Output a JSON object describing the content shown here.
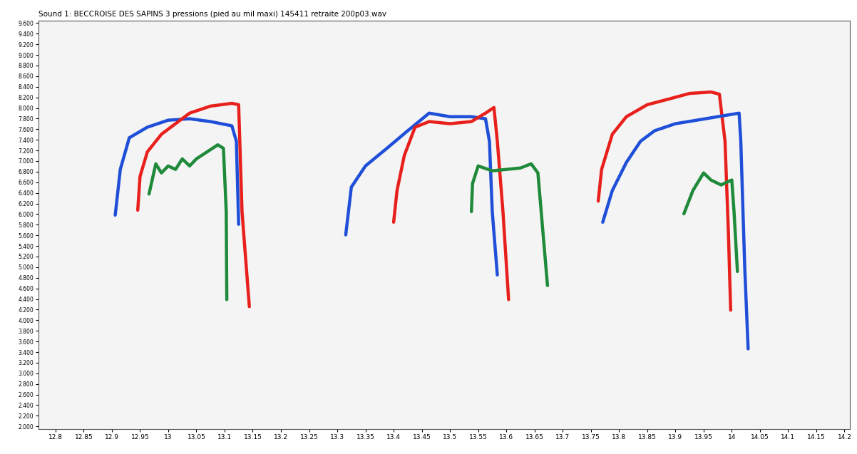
{
  "chart_data": {
    "type": "line",
    "title": "Sound 1: BECCROISE DES SAPINS 3 pressions (pied au mil maxi) 145411 retraite 200p03.wav",
    "xlim": [
      12.77,
      14.21
    ],
    "ylim": [
      1950,
      9650
    ],
    "xticks": [
      12.8,
      12.85,
      12.9,
      12.95,
      13,
      13.05,
      13.1,
      13.15,
      13.2,
      13.25,
      13.3,
      13.35,
      13.4,
      13.45,
      13.5,
      13.55,
      13.6,
      13.65,
      13.7,
      13.75,
      13.8,
      13.85,
      13.9,
      13.95,
      14,
      14.05,
      14.1,
      14.15,
      14.2
    ],
    "yticks": [
      {
        "value": 2000,
        "label": "2.000"
      },
      {
        "value": 2200,
        "label": "2.200"
      },
      {
        "value": 2400,
        "label": "2.400"
      },
      {
        "value": 2600,
        "label": "2.600"
      },
      {
        "value": 2800,
        "label": "2.800"
      },
      {
        "value": 3000,
        "label": "3.000"
      },
      {
        "value": 3200,
        "label": "3.200"
      },
      {
        "value": 3400,
        "label": "3.400"
      },
      {
        "value": 3600,
        "label": "3.600"
      },
      {
        "value": 3800,
        "label": "3.800"
      },
      {
        "value": 4000,
        "label": "4.000"
      },
      {
        "value": 4200,
        "label": "4.200"
      },
      {
        "value": 4400,
        "label": "4.400"
      },
      {
        "value": 4600,
        "label": "4.600"
      },
      {
        "value": 4800,
        "label": "4.800"
      },
      {
        "value": 5000,
        "label": "5.000"
      },
      {
        "value": 5200,
        "label": "5.200"
      },
      {
        "value": 5400,
        "label": "5.400"
      },
      {
        "value": 5600,
        "label": "5.600"
      },
      {
        "value": 5800,
        "label": "5.800"
      },
      {
        "value": 6000,
        "label": "6.000"
      },
      {
        "value": 6200,
        "label": "6.200"
      },
      {
        "value": 6400,
        "label": "6.400"
      },
      {
        "value": 6600,
        "label": "6.600"
      },
      {
        "value": 6800,
        "label": "6.800"
      },
      {
        "value": 7000,
        "label": "7.000"
      },
      {
        "value": 7200,
        "label": "7.200"
      },
      {
        "value": 7400,
        "label": "7.400"
      },
      {
        "value": 7600,
        "label": "7.600"
      },
      {
        "value": 7800,
        "label": "7.800"
      },
      {
        "value": 8000,
        "label": "8.000"
      },
      {
        "value": 8200,
        "label": "8.200"
      },
      {
        "value": 8400,
        "label": "8.400"
      },
      {
        "value": 8600,
        "label": "8.600"
      },
      {
        "value": 8800,
        "label": "8.800"
      },
      {
        "value": 9000,
        "label": "9.000"
      },
      {
        "value": 9200,
        "label": "9.200"
      },
      {
        "value": 9400,
        "label": "9.400"
      },
      {
        "value": 9600,
        "label": "9.600"
      }
    ],
    "grid": false,
    "series": [
      {
        "color": "#1f4fd8",
        "x": [
          12.906,
          12.915,
          12.931,
          12.963,
          13.0,
          13.038,
          13.075,
          13.113,
          13.121,
          13.125
        ],
        "values": [
          5980,
          6842,
          7439,
          7638,
          7770,
          7797,
          7744,
          7664,
          7372,
          5808
        ]
      },
      {
        "color": "#e8201c",
        "x": [
          12.946,
          12.95,
          12.963,
          12.988,
          13.013,
          13.038,
          13.075,
          13.113,
          13.125,
          13.131,
          13.144
        ],
        "values": [
          6073,
          6709,
          7173,
          7505,
          7704,
          7903,
          8035,
          8088,
          8062,
          6046,
          4256
        ]
      },
      {
        "color": "#1e8a3a",
        "x": [
          12.966,
          12.978,
          12.988,
          13.0,
          13.013,
          13.025,
          13.038,
          13.05,
          13.069,
          13.088,
          13.098,
          13.103,
          13.104
        ],
        "values": [
          6378,
          6948,
          6776,
          6908,
          6842,
          7041,
          6908,
          7041,
          7173,
          7306,
          7240,
          6046,
          4389
        ]
      },
      {
        "color": "#1f4fd8",
        "x": [
          13.315,
          13.325,
          13.35,
          13.388,
          13.425,
          13.463,
          13.5,
          13.538,
          13.563,
          13.57,
          13.575,
          13.584
        ],
        "values": [
          5609,
          6510,
          6908,
          7240,
          7571,
          7903,
          7836,
          7836,
          7797,
          7372,
          6046,
          4853
        ]
      },
      {
        "color": "#e8201c",
        "x": [
          13.4,
          13.406,
          13.419,
          13.438,
          13.463,
          13.5,
          13.538,
          13.563,
          13.578,
          13.584,
          13.594,
          13.604
        ],
        "values": [
          5847,
          6444,
          7107,
          7638,
          7744,
          7704,
          7744,
          7903,
          8009,
          7372,
          6046,
          4389
        ]
      },
      {
        "color": "#1e8a3a",
        "x": [
          13.538,
          13.54,
          13.55,
          13.575,
          13.6,
          13.625,
          13.644,
          13.656,
          13.665,
          13.673
        ],
        "values": [
          6046,
          6577,
          6908,
          6816,
          6842,
          6869,
          6948,
          6776,
          5649,
          4654
        ]
      },
      {
        "color": "#e8201c",
        "x": [
          13.763,
          13.769,
          13.788,
          13.813,
          13.85,
          13.888,
          13.925,
          13.963,
          13.978,
          13.988,
          13.994,
          13.998
        ],
        "values": [
          6245,
          6842,
          7505,
          7836,
          8062,
          8168,
          8274,
          8301,
          8261,
          7372,
          5649,
          4190
        ]
      },
      {
        "color": "#1f4fd8",
        "x": [
          13.771,
          13.788,
          13.813,
          13.838,
          13.863,
          13.9,
          13.938,
          13.975,
          14.013,
          14.016,
          14.023,
          14.029
        ],
        "values": [
          5847,
          6444,
          6975,
          7372,
          7571,
          7704,
          7770,
          7836,
          7903,
          7372,
          4986,
          3461
        ]
      },
      {
        "color": "#1e8a3a",
        "x": [
          13.915,
          13.931,
          13.95,
          13.963,
          13.981,
          14.0,
          14.004,
          14.01
        ],
        "values": [
          6006,
          6444,
          6776,
          6643,
          6550,
          6643,
          6046,
          4919
        ]
      }
    ]
  }
}
